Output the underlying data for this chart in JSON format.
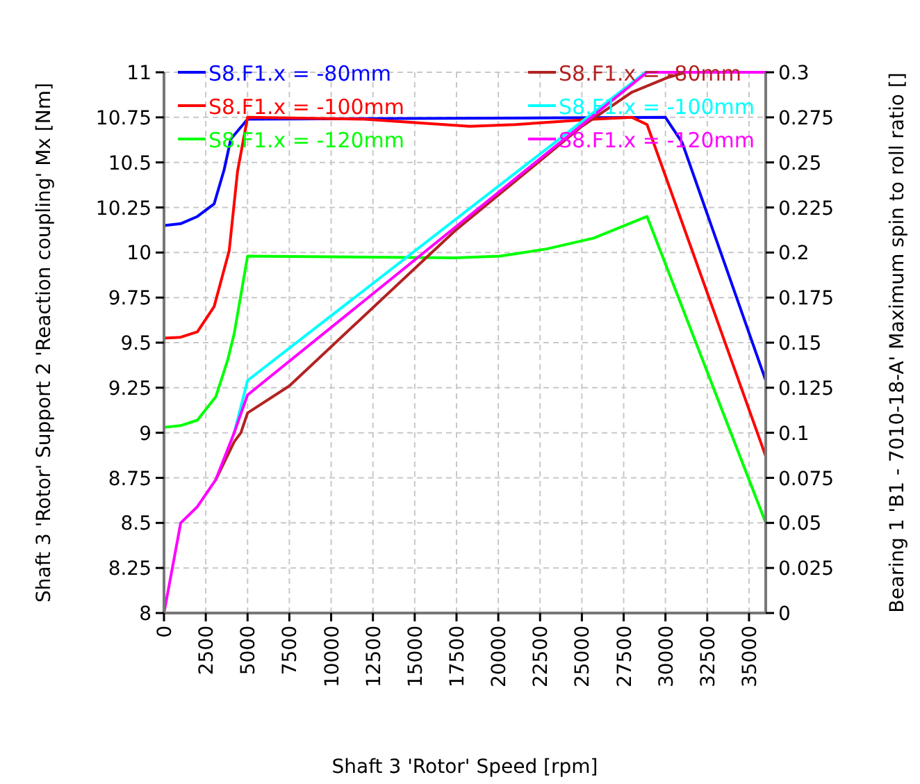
{
  "chart_data": {
    "type": "line",
    "xlabel": "Shaft 3 'Rotor' Speed [rpm]",
    "ylabel": "Shaft 3 'Rotor' Support 2 'Reaction coupling' Mx [Nm]",
    "y2label": "Bearing 1 'B1 - 7010-18-A' Maximum spin to roll ratio []",
    "xlim": [
      0,
      36000
    ],
    "xticks": [
      0,
      2500,
      5000,
      7500,
      10000,
      12500,
      15000,
      17500,
      20000,
      22500,
      25000,
      27500,
      30000,
      32500,
      35000
    ],
    "ylim": [
      8,
      11
    ],
    "yticks": [
      8,
      8.25,
      8.5,
      8.75,
      9,
      9.25,
      9.5,
      9.75,
      10,
      10.25,
      10.5,
      10.75,
      11
    ],
    "y2lim": [
      0,
      0.3
    ],
    "y2ticks": [
      0,
      0.025,
      0.05,
      0.075,
      0.1,
      0.125,
      0.15,
      0.175,
      0.2,
      0.225,
      0.25,
      0.275,
      0.3
    ],
    "grid": true,
    "legend": "top",
    "line_style": "solid",
    "marker": "none",
    "series": [
      {
        "name": "S8.F1.x = -80mm",
        "color": "#0000ff",
        "x": [
          0,
          1000,
          2000,
          3000,
          3600,
          4000,
          5000,
          30000,
          31000,
          36000
        ],
        "values": [
          10.15,
          10.16,
          10.2,
          10.27,
          10.46,
          10.63,
          10.74,
          10.75,
          10.61,
          9.29
        ]
      },
      {
        "name": "S8.F1.x = -100mm",
        "color": "#ff0000",
        "x": [
          0,
          1000,
          2000,
          3000,
          3900,
          4400,
          5000,
          12000,
          18300,
          21000,
          25700,
          28000,
          28900,
          36000
        ],
        "values": [
          9.525,
          9.53,
          9.56,
          9.7,
          10.01,
          10.45,
          10.75,
          10.74,
          10.7,
          10.71,
          10.74,
          10.75,
          10.71,
          8.87
        ]
      },
      {
        "name": "S8.F1.x = -120mm",
        "color": "#00ff00",
        "x": [
          0,
          1000,
          2000,
          3100,
          3800,
          4200,
          5000,
          11300,
          17400,
          20100,
          22900,
          25700,
          28900,
          36000
        ],
        "values": [
          9.03,
          9.04,
          9.07,
          9.2,
          9.4,
          9.55,
          9.98,
          9.975,
          9.97,
          9.98,
          10.02,
          10.08,
          10.2,
          8.5
        ]
      },
      {
        "name": "S8.F1.x = -80mm",
        "color": "#b22222",
        "axis": "y2",
        "x": [
          3100,
          4200,
          4600,
          5000,
          7500,
          17400,
          25000,
          28000,
          30100,
          31200,
          36000
        ],
        "values": [
          0.074,
          0.095,
          0.1,
          0.111,
          0.126,
          0.212,
          0.27,
          0.289,
          0.297,
          0.3,
          0.3
        ]
      },
      {
        "name": "S8.F1.x = -100mm",
        "color": "#00ffff",
        "axis": "y2",
        "x": [
          4200,
          5000,
          28800
        ],
        "values": [
          0.1,
          0.129,
          0.3
        ]
      },
      {
        "name": "S8.F1.x = -120mm",
        "color": "#ff00ff",
        "axis": "y2",
        "x": [
          0,
          1000,
          2000,
          3100,
          4200,
          5000,
          28900,
          36000
        ],
        "values": [
          0,
          0.05,
          0.059,
          0.074,
          0.1,
          0.121,
          0.3,
          0.3
        ]
      }
    ]
  }
}
